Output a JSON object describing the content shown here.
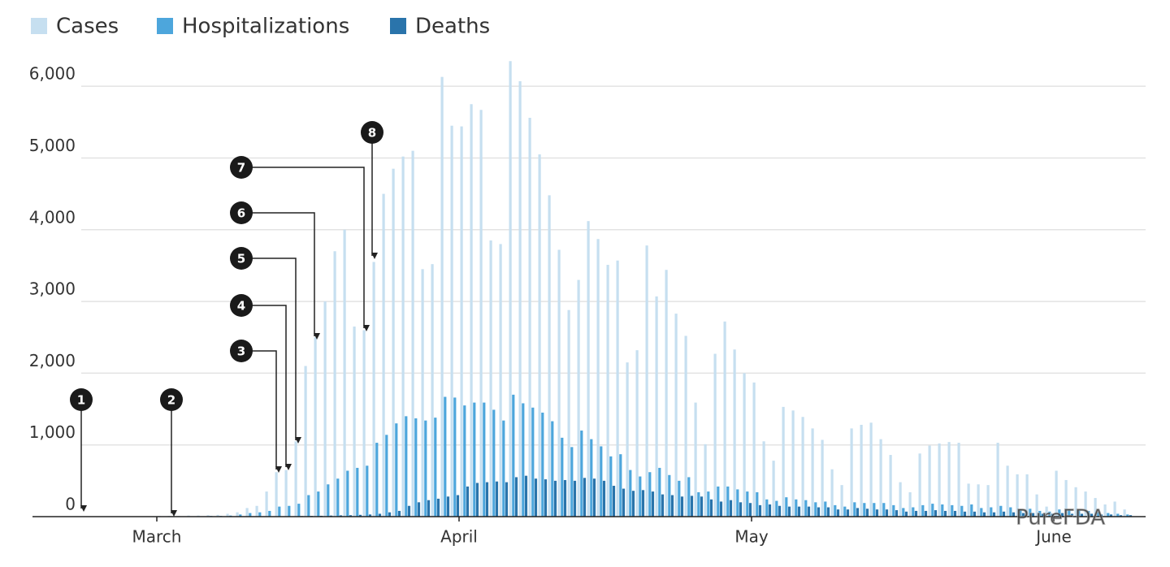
{
  "chart_data": {
    "type": "bar",
    "categories": [
      null,
      null,
      null,
      null,
      null,
      null,
      null,
      null,
      "March",
      null,
      null,
      null,
      null,
      null,
      null,
      null,
      null,
      null,
      null,
      null,
      null,
      null,
      null,
      null,
      null,
      null,
      null,
      null,
      null,
      null,
      null,
      null,
      null,
      null,
      null,
      null,
      null,
      null,
      null,
      "April",
      null,
      null,
      null,
      null,
      null,
      null,
      null,
      null,
      null,
      null,
      null,
      null,
      null,
      null,
      null,
      null,
      null,
      null,
      null,
      null,
      null,
      null,
      null,
      null,
      null,
      null,
      null,
      null,
      null,
      "May",
      null,
      null,
      null,
      null,
      null,
      null,
      null,
      null,
      null,
      null,
      null,
      null,
      null,
      null,
      null,
      null,
      null,
      null,
      null,
      null,
      null,
      null,
      null,
      null,
      null,
      null,
      null,
      null,
      null,
      null,
      "June",
      null,
      null,
      null,
      null,
      null,
      null,
      null
    ],
    "series": [
      {
        "name": "Cases",
        "color": "#c6dff0",
        "values": [
          0,
          0,
          0,
          0,
          0,
          0,
          0,
          0,
          10,
          10,
          10,
          15,
          15,
          20,
          25,
          40,
          60,
          120,
          150,
          350,
          620,
          650,
          1050,
          2100,
          2500,
          3000,
          3700,
          4000,
          2650,
          2600,
          3550,
          4500,
          4850,
          5020,
          5100,
          3450,
          3520,
          6130,
          5450,
          5440,
          5750,
          5670,
          3850,
          3800,
          6350,
          6070,
          5560,
          5050,
          4480,
          3720,
          2880,
          3300,
          4120,
          3870,
          3510,
          3570,
          2150,
          2320,
          3780,
          3070,
          3440,
          2830,
          2520,
          1590,
          1010,
          2270,
          2720,
          2330,
          2000,
          1870,
          1050,
          780,
          1530,
          1480,
          1390,
          1230,
          1070,
          660,
          440,
          1230,
          1280,
          1310,
          1080,
          860,
          480,
          340,
          880,
          990,
          1020,
          1040,
          1030,
          460,
          450,
          440,
          1030,
          710,
          590,
          590,
          310,
          140,
          640,
          510,
          410,
          350,
          260,
          170,
          210,
          100
        ]
      },
      {
        "name": "Hospitalizations",
        "color": "#4da6dc",
        "values": [
          0,
          0,
          0,
          0,
          0,
          0,
          0,
          0,
          0,
          0,
          5,
          5,
          5,
          10,
          10,
          15,
          30,
          50,
          60,
          80,
          140,
          150,
          180,
          300,
          350,
          450,
          530,
          640,
          680,
          710,
          1030,
          1140,
          1300,
          1400,
          1370,
          1340,
          1380,
          1670,
          1660,
          1550,
          1590,
          1590,
          1490,
          1340,
          1700,
          1580,
          1520,
          1450,
          1330,
          1100,
          970,
          1200,
          1080,
          980,
          840,
          870,
          650,
          560,
          620,
          680,
          580,
          500,
          550,
          340,
          350,
          420,
          420,
          380,
          350,
          340,
          240,
          220,
          270,
          240,
          230,
          200,
          210,
          160,
          140,
          200,
          190,
          190,
          190,
          160,
          120,
          130,
          160,
          180,
          170,
          160,
          150,
          170,
          120,
          130,
          150,
          130,
          100,
          110,
          80,
          70,
          100,
          100,
          90,
          80,
          60,
          50,
          40,
          30
        ]
      },
      {
        "name": "Deaths",
        "color": "#2a74ab",
        "values": [
          0,
          0,
          0,
          0,
          0,
          0,
          0,
          0,
          0,
          0,
          0,
          0,
          0,
          0,
          0,
          0,
          0,
          0,
          1,
          2,
          3,
          5,
          8,
          10,
          12,
          15,
          18,
          20,
          25,
          30,
          40,
          60,
          80,
          150,
          200,
          230,
          250,
          280,
          300,
          420,
          470,
          480,
          490,
          480,
          550,
          570,
          530,
          520,
          500,
          510,
          500,
          540,
          530,
          500,
          430,
          390,
          360,
          370,
          350,
          310,
          300,
          280,
          290,
          280,
          240,
          210,
          230,
          200,
          190,
          160,
          170,
          150,
          140,
          140,
          140,
          130,
          130,
          100,
          100,
          120,
          110,
          100,
          100,
          90,
          70,
          80,
          80,
          90,
          80,
          80,
          70,
          70,
          60,
          60,
          70,
          60,
          50,
          50,
          40,
          40,
          50,
          40,
          40,
          40,
          30,
          30,
          20,
          20
        ]
      }
    ],
    "ylim": [
      0,
      6500
    ],
    "yticks": [
      0,
      {
        "value": 1000,
        "label": "1,000"
      },
      {
        "value": 2000,
        "label": "2,000"
      },
      {
        "value": 3000,
        "label": "3,000"
      },
      {
        "value": 4000,
        "label": "4,000"
      },
      {
        "value": 5000,
        "label": "5,000"
      },
      {
        "value": 6000,
        "label": "6,000"
      }
    ],
    "grid": true,
    "legend": "top",
    "annotations": [
      {
        "label": "1"
      },
      {
        "label": "2"
      },
      {
        "label": "3"
      },
      {
        "label": "4"
      },
      {
        "label": "5"
      },
      {
        "label": "6"
      },
      {
        "label": "7"
      },
      {
        "label": "8"
      }
    ],
    "watermark": "PureFDA"
  }
}
